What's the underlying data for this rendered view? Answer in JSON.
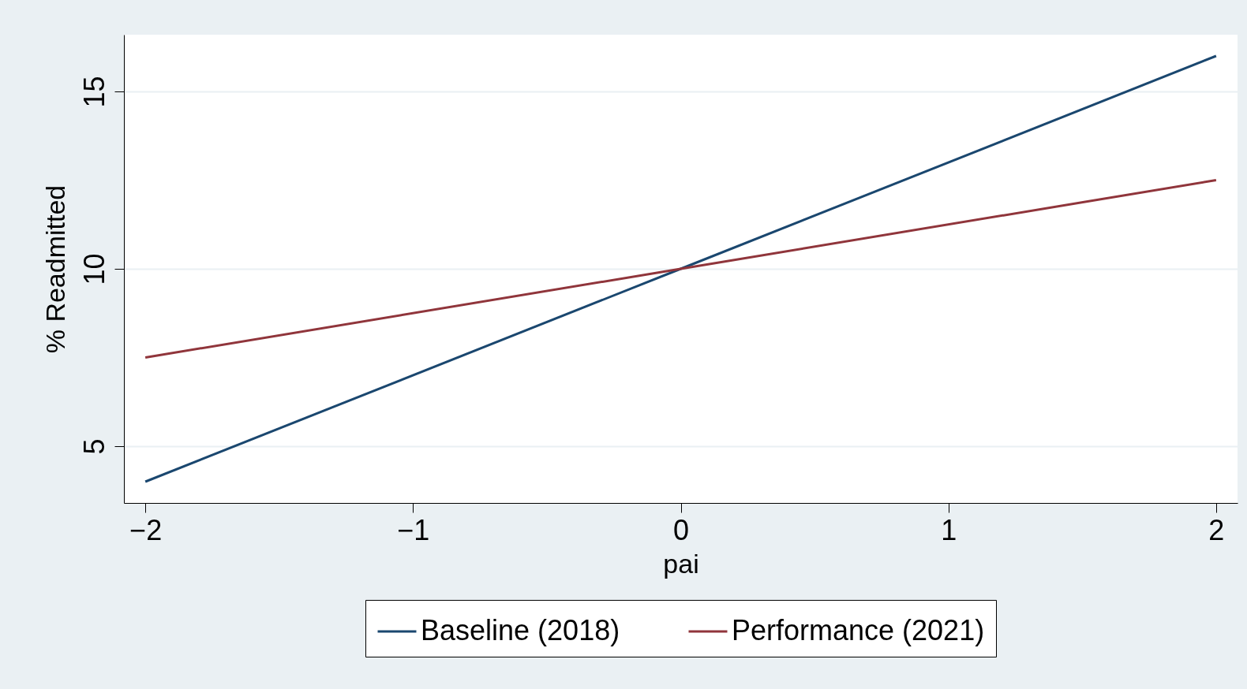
{
  "chart_data": {
    "type": "line",
    "xlabel": "pai",
    "ylabel": "% Readmitted",
    "x": [
      -2,
      0,
      2
    ],
    "series": [
      {
        "name": "Baseline (2018)",
        "color": "#1a476f",
        "values": [
          4,
          10,
          16
        ]
      },
      {
        "name": "Performance (2021)",
        "color": "#90353b",
        "values": [
          7.5,
          10,
          12.5
        ]
      }
    ],
    "xlim": [
      -2.08,
      2.08
    ],
    "xticks": [
      -2,
      -1,
      0,
      1,
      2
    ],
    "ylim": [
      3.4,
      16.6
    ],
    "yticks": [
      5,
      10,
      15
    ],
    "grid": "y",
    "legend": "bottom",
    "line_style": "solid",
    "marker": "none"
  }
}
